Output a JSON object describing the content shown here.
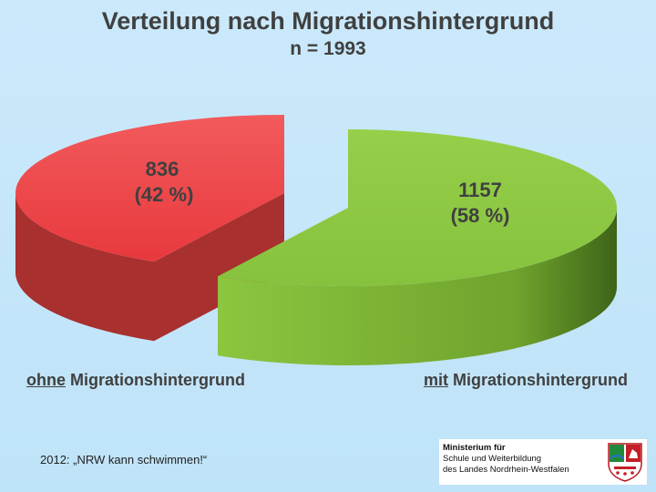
{
  "chart_data": {
    "type": "pie",
    "title": "Verteilung nach Migrationshintergrund",
    "subtitle": "n = 1993",
    "categories": [
      "ohne Migrationshintergrund",
      "mit Migrationshintergrund"
    ],
    "values": [
      836,
      1157
    ],
    "percent_labels": [
      "(42 %)",
      "(58 %)"
    ],
    "value_labels": [
      "836",
      "1157"
    ],
    "colors": [
      "#ef4b4f",
      "#8cc63f"
    ],
    "legend": [
      {
        "underlined": "ohne",
        "rest": " Migrationshintergrund"
      },
      {
        "underlined": "mit",
        "rest": " Migrationshintergrund"
      }
    ]
  },
  "footer": {
    "caption": "2012: „NRW kann schwimmen!“",
    "ministry_line1": "Ministerium für",
    "ministry_line2": "Schule und Weiterbildung",
    "ministry_line3": "des Landes Nordrhein-Westfalen"
  }
}
